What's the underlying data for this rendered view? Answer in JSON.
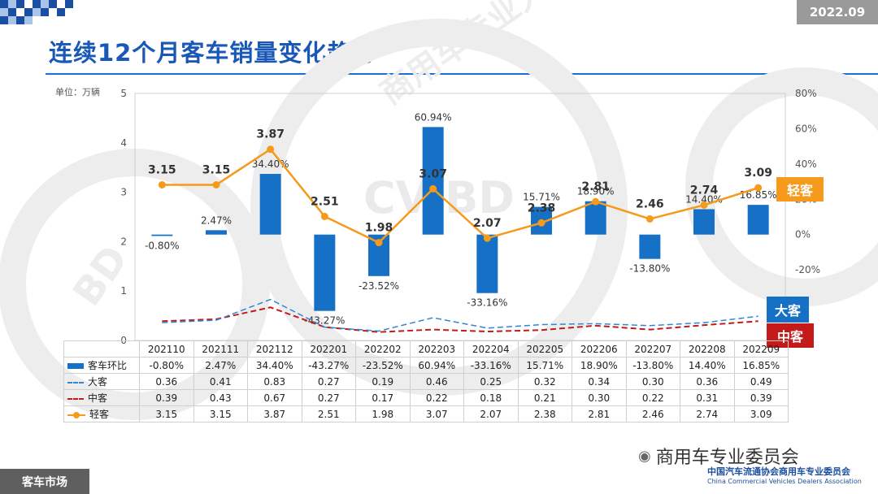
{
  "date_tab": "2022.09",
  "title": "连续12个月客车销量变化趋势",
  "unit": "单位：万辆",
  "labels": {
    "light_tag": "轻客",
    "large_tag": "大客",
    "mid_tag": "中客"
  },
  "watermark": [
    "商用车专业大数据平台",
    "CV-BD",
    "BD"
  ],
  "chart_data": {
    "type": "bar+line",
    "categories": [
      "202110",
      "202111",
      "202112",
      "202201",
      "202202",
      "202203",
      "202204",
      "202205",
      "202206",
      "202207",
      "202208",
      "202209"
    ],
    "series": [
      {
        "name": "客车环比",
        "axis": "right",
        "kind": "bar",
        "values": [
          -0.8,
          2.47,
          34.4,
          -43.27,
          -23.52,
          60.94,
          -33.16,
          15.71,
          18.9,
          -13.8,
          14.4,
          16.85
        ],
        "labels": [
          "-0.80%",
          "2.47%",
          "34.40%",
          "-43.27%",
          "-23.52%",
          "60.94%",
          "-33.16%",
          "15.71%",
          "18.90%",
          "-13.80%",
          "14.40%",
          "16.85%"
        ],
        "color": "#1570c6"
      },
      {
        "name": "大客",
        "axis": "left",
        "kind": "dashed-line",
        "values": [
          0.36,
          0.41,
          0.83,
          0.27,
          0.19,
          0.46,
          0.25,
          0.32,
          0.34,
          0.3,
          0.36,
          0.49
        ],
        "labels": [
          "0.36",
          "0.41",
          "0.83",
          "0.27",
          "0.19",
          "0.46",
          "0.25",
          "0.32",
          "0.34",
          "0.30",
          "0.36",
          "0.49"
        ],
        "color": "#2e86d4"
      },
      {
        "name": "中客",
        "axis": "left",
        "kind": "dashed-line",
        "values": [
          0.39,
          0.43,
          0.67,
          0.27,
          0.17,
          0.22,
          0.18,
          0.21,
          0.3,
          0.22,
          0.31,
          0.39
        ],
        "labels": [
          "0.39",
          "0.43",
          "0.67",
          "0.27",
          "0.17",
          "0.22",
          "0.18",
          "0.21",
          "0.30",
          "0.22",
          "0.31",
          "0.39"
        ],
        "color": "#c41a1a"
      },
      {
        "name": "轻客",
        "axis": "left",
        "kind": "line-marker",
        "values": [
          3.15,
          3.15,
          3.87,
          2.51,
          1.98,
          3.07,
          2.07,
          2.38,
          2.81,
          2.46,
          2.74,
          3.09
        ],
        "labels": [
          "3.15",
          "3.15",
          "3.87",
          "2.51",
          "1.98",
          "3.07",
          "2.07",
          "2.38",
          "2.81",
          "2.46",
          "2.74",
          "3.09"
        ],
        "color": "#f59a1b"
      }
    ],
    "y_left": {
      "min": 0,
      "max": 5,
      "ticks": [
        "0",
        "1",
        "2",
        "3",
        "4",
        "5"
      ]
    },
    "y_right": {
      "min": -60,
      "max": 80,
      "ticks": [
        "80%",
        "60%",
        "40%",
        "20%",
        "0%",
        "-20%"
      ],
      "tick_values": [
        80,
        60,
        40,
        20,
        0,
        -20
      ]
    }
  },
  "footer": {
    "section": "客车市场",
    "wechat": "商用车专业委员会",
    "assoc_cn": "中国汽车流通协会商用车专业委员会",
    "assoc_en": "China Commercial Vehicles Dealers Association"
  }
}
